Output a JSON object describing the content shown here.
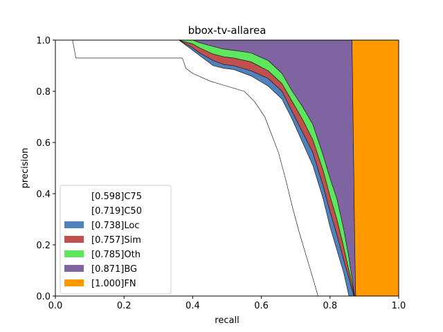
{
  "chart_data": {
    "type": "area",
    "title": "bbox-tv-allarea",
    "xlabel": "recall",
    "ylabel": "precision",
    "xlim": [
      0.0,
      1.0
    ],
    "ylim": [
      0.0,
      1.0
    ],
    "xticks": [
      "0.0",
      "0.2",
      "0.4",
      "0.6",
      "0.8",
      "1.0"
    ],
    "yticks": [
      "0.0",
      "0.2",
      "0.4",
      "0.6",
      "0.8",
      "1.0"
    ],
    "legend_position": "lower-left",
    "grid": false,
    "series": [
      {
        "name": "[1.000]FN",
        "color": "#ff9900",
        "points": [
          [
            0.0,
            1.0
          ],
          [
            1.0,
            1.0
          ],
          [
            1.0,
            0.0
          ],
          [
            0.0,
            0.0
          ]
        ]
      },
      {
        "name": "[0.871]BG",
        "color": "#8064a2",
        "points": [
          [
            0,
            1
          ],
          [
            0.864,
            1
          ],
          [
            0.866,
            0.8
          ],
          [
            0.868,
            0.6
          ],
          [
            0.87,
            0.4
          ],
          [
            0.872,
            0.2
          ],
          [
            0.874,
            0.05
          ],
          [
            0.875,
            0
          ]
        ]
      },
      {
        "name": "[0.785]Oth",
        "color": "#5ee75e",
        "points": [
          [
            0,
            1
          ],
          [
            0.36,
            1
          ],
          [
            0.4,
            1
          ],
          [
            0.42,
            0.99
          ],
          [
            0.46,
            0.975
          ],
          [
            0.49,
            0.965
          ],
          [
            0.52,
            0.96
          ],
          [
            0.57,
            0.95
          ],
          [
            0.62,
            0.92
          ],
          [
            0.66,
            0.87
          ],
          [
            0.69,
            0.8
          ],
          [
            0.72,
            0.74
          ],
          [
            0.75,
            0.67
          ],
          [
            0.78,
            0.55
          ],
          [
            0.8,
            0.46
          ],
          [
            0.82,
            0.38
          ],
          [
            0.84,
            0.26
          ],
          [
            0.855,
            0.15
          ],
          [
            0.865,
            0.06
          ],
          [
            0.87,
            0.01
          ],
          [
            0.872,
            0
          ]
        ]
      },
      {
        "name": "[0.757]Sim",
        "color": "#c0504d",
        "points": [
          [
            0,
            1
          ],
          [
            0.36,
            1
          ],
          [
            0.4,
            0.985
          ],
          [
            0.42,
            0.97
          ],
          [
            0.46,
            0.945
          ],
          [
            0.49,
            0.935
          ],
          [
            0.52,
            0.93
          ],
          [
            0.57,
            0.915
          ],
          [
            0.62,
            0.88
          ],
          [
            0.66,
            0.83
          ],
          [
            0.69,
            0.76
          ],
          [
            0.72,
            0.69
          ],
          [
            0.75,
            0.61
          ],
          [
            0.78,
            0.49
          ],
          [
            0.8,
            0.39
          ],
          [
            0.82,
            0.3
          ],
          [
            0.84,
            0.19
          ],
          [
            0.855,
            0.1
          ],
          [
            0.865,
            0.04
          ],
          [
            0.87,
            0.005
          ],
          [
            0.871,
            0
          ]
        ]
      },
      {
        "name": "[0.738]Loc",
        "color": "#4f81bd",
        "points": [
          [
            0,
            1
          ],
          [
            0.36,
            1
          ],
          [
            0.4,
            0.97
          ],
          [
            0.42,
            0.95
          ],
          [
            0.46,
            0.92
          ],
          [
            0.49,
            0.905
          ],
          [
            0.52,
            0.9
          ],
          [
            0.57,
            0.88
          ],
          [
            0.62,
            0.85
          ],
          [
            0.66,
            0.8
          ],
          [
            0.69,
            0.72
          ],
          [
            0.72,
            0.64
          ],
          [
            0.75,
            0.56
          ],
          [
            0.78,
            0.43
          ],
          [
            0.8,
            0.33
          ],
          [
            0.82,
            0.24
          ],
          [
            0.84,
            0.14
          ],
          [
            0.855,
            0.07
          ],
          [
            0.865,
            0.02
          ],
          [
            0.87,
            0
          ]
        ]
      },
      {
        "name": "[0.719]C50",
        "color": "#ffffff",
        "points": [
          [
            0,
            1
          ],
          [
            0.36,
            1
          ],
          [
            0.4,
            0.96
          ],
          [
            0.42,
            0.94
          ],
          [
            0.46,
            0.9
          ],
          [
            0.49,
            0.89
          ],
          [
            0.52,
            0.885
          ],
          [
            0.57,
            0.86
          ],
          [
            0.62,
            0.82
          ],
          [
            0.66,
            0.77
          ],
          [
            0.69,
            0.69
          ],
          [
            0.72,
            0.6
          ],
          [
            0.75,
            0.51
          ],
          [
            0.78,
            0.38
          ],
          [
            0.8,
            0.27
          ],
          [
            0.82,
            0.18
          ],
          [
            0.84,
            0.09
          ],
          [
            0.85,
            0.03
          ],
          [
            0.855,
            0
          ]
        ]
      },
      {
        "name": "[0.598]C75",
        "color": "#ffffff",
        "points": [
          [
            0,
            1
          ],
          [
            0.05,
            1
          ],
          [
            0.06,
            0.93
          ],
          [
            0.37,
            0.93
          ],
          [
            0.38,
            0.89
          ],
          [
            0.4,
            0.87
          ],
          [
            0.45,
            0.84
          ],
          [
            0.5,
            0.82
          ],
          [
            0.55,
            0.8
          ],
          [
            0.58,
            0.76
          ],
          [
            0.61,
            0.7
          ],
          [
            0.63,
            0.63
          ],
          [
            0.65,
            0.56
          ],
          [
            0.67,
            0.46
          ],
          [
            0.69,
            0.35
          ],
          [
            0.71,
            0.25
          ],
          [
            0.73,
            0.16
          ],
          [
            0.75,
            0.07
          ],
          [
            0.765,
            0
          ]
        ]
      }
    ]
  }
}
